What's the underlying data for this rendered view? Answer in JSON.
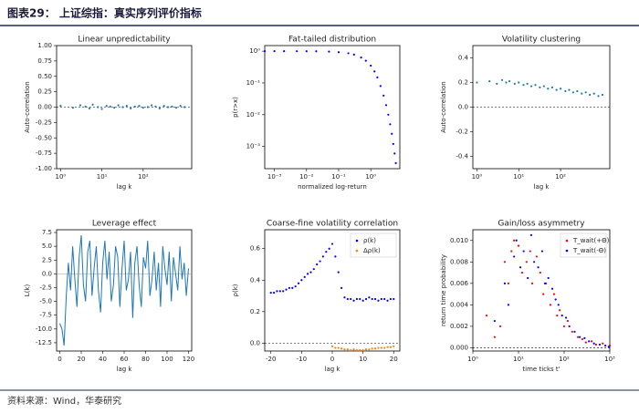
{
  "header": {
    "title": "图表29： 上证综指：真实序列评价指标"
  },
  "source": "资料来源：Wind，华泰研究",
  "chart_data": [
    {
      "type": "scatter",
      "title": "Linear unpredictability",
      "xlabel": "lag k",
      "ylabel": "Auto-correlation",
      "xlog": true,
      "xlim": [
        0.8,
        1500
      ],
      "xticks": [
        {
          "value": 1,
          "label": "10⁰"
        },
        {
          "value": 10,
          "label": "10¹"
        },
        {
          "value": 100,
          "label": "10²"
        }
      ],
      "ylim": [
        -1,
        1
      ],
      "yticks": [
        {
          "value": -1,
          "label": "-1.00"
        },
        {
          "value": -0.75,
          "label": "-0.75"
        },
        {
          "value": -0.5,
          "label": "-0.50"
        },
        {
          "value": -0.25,
          "label": "-0.25"
        },
        {
          "value": 0,
          "label": "0.00"
        },
        {
          "value": 0.25,
          "label": "0.25"
        },
        {
          "value": 0.5,
          "label": "0.50"
        },
        {
          "value": 0.75,
          "label": "0.75"
        },
        {
          "value": 1,
          "label": "1.00"
        }
      ],
      "series": [
        {
          "color": "#1f77b4",
          "x": [
            1,
            2,
            3,
            4,
            5,
            6,
            8,
            10,
            13,
            16,
            20,
            25,
            32,
            40,
            50,
            63,
            80,
            100,
            130,
            160,
            200,
            250,
            320,
            400,
            500,
            630,
            800,
            1000
          ],
          "values": [
            0.02,
            -0.01,
            0.03,
            0.01,
            -0.02,
            0.04,
            0.0,
            -0.03,
            0.02,
            0.01,
            -0.01,
            0.03,
            0.0,
            0.02,
            -0.02,
            0.01,
            0.02,
            -0.01,
            0.0,
            0.03,
            0.01,
            -0.02,
            0.02,
            0.0,
            0.01,
            -0.01,
            0.02,
            0.0
          ]
        }
      ]
    },
    {
      "type": "scatter",
      "title": "Fat-tailed distribution",
      "xlabel": "normalized log-return",
      "ylabel": "p(r>x)",
      "xlog": true,
      "ylog": true,
      "xlim": [
        0.0005,
        8
      ],
      "xticks": [
        {
          "value": 0.001,
          "label": "10⁻³"
        },
        {
          "value": 0.01,
          "label": "10⁻²"
        },
        {
          "value": 0.1,
          "label": "10⁻¹"
        },
        {
          "value": 1,
          "label": "10⁰"
        }
      ],
      "ylim": [
        0.0002,
        1.5
      ],
      "yticks": [
        {
          "value": 0.001,
          "label": "10⁻³"
        },
        {
          "value": 0.01,
          "label": "10⁻²"
        },
        {
          "value": 0.1,
          "label": "10⁻¹"
        },
        {
          "value": 1,
          "label": "10⁰"
        }
      ],
      "series": [
        {
          "color": "#0000ff",
          "x": [
            0.0005,
            0.001,
            0.002,
            0.005,
            0.01,
            0.02,
            0.05,
            0.1,
            0.2,
            0.3,
            0.5,
            0.7,
            1,
            1.3,
            1.6,
            2,
            2.5,
            3,
            3.5,
            4,
            4.5,
            5,
            5.5,
            6
          ],
          "values": [
            1,
            1,
            1,
            0.998,
            0.995,
            0.99,
            0.97,
            0.93,
            0.86,
            0.78,
            0.63,
            0.5,
            0.35,
            0.23,
            0.15,
            0.08,
            0.04,
            0.02,
            0.01,
            0.005,
            0.0025,
            0.0012,
            0.0006,
            0.0003
          ]
        }
      ]
    },
    {
      "type": "scatter",
      "title": "Volatility clustering",
      "xlabel": "lag k",
      "ylabel": "Auto-correlation",
      "xlog": true,
      "xlim": [
        0.8,
        1500
      ],
      "xticks": [
        {
          "value": 1,
          "label": "10⁰"
        },
        {
          "value": 10,
          "label": "10¹"
        },
        {
          "value": 100,
          "label": "10²"
        }
      ],
      "ylim": [
        -0.5,
        0.5
      ],
      "yticks": [
        -0.4,
        -0.2,
        {
          "value": 0,
          "label": "0.0"
        },
        0.2,
        0.4
      ],
      "series": [
        {
          "color": "#1f77b4",
          "x": [
            1,
            2,
            3,
            4,
            5,
            6,
            8,
            10,
            13,
            16,
            20,
            25,
            32,
            40,
            50,
            63,
            80,
            100,
            130,
            160,
            200,
            250,
            320,
            400,
            500,
            630,
            800,
            1000
          ],
          "values": [
            0.2,
            0.21,
            0.19,
            0.22,
            0.2,
            0.21,
            0.19,
            0.2,
            0.18,
            0.19,
            0.17,
            0.18,
            0.16,
            0.17,
            0.15,
            0.16,
            0.14,
            0.15,
            0.13,
            0.14,
            0.12,
            0.13,
            0.11,
            0.12,
            0.1,
            0.11,
            0.09,
            0.1
          ]
        }
      ]
    },
    {
      "type": "line",
      "title": "Leverage effect",
      "xlabel": "lag k",
      "ylabel": "L(k)",
      "xlim": [
        -3,
        123
      ],
      "xticks": [
        0,
        20,
        40,
        60,
        80,
        100,
        120
      ],
      "ylim": [
        -14,
        8
      ],
      "yticks": [
        {
          "value": -12.5,
          "label": "-12.5"
        },
        {
          "value": -10,
          "label": "-10.0"
        },
        {
          "value": -7.5,
          "label": "-7.5"
        },
        {
          "value": -5,
          "label": "-5.0"
        },
        {
          "value": -2.5,
          "label": "-2.5"
        },
        {
          "value": 0,
          "label": "0.0"
        },
        {
          "value": 2.5,
          "label": "2.5"
        },
        {
          "value": 5,
          "label": "5.0"
        },
        {
          "value": 7.5,
          "label": "7.5"
        }
      ],
      "series": [
        {
          "color": "#1f77b4",
          "x": [
            0,
            2,
            4,
            6,
            8,
            10,
            12,
            14,
            16,
            18,
            20,
            22,
            24,
            26,
            28,
            30,
            32,
            34,
            36,
            38,
            40,
            42,
            44,
            46,
            48,
            50,
            52,
            54,
            56,
            58,
            60,
            62,
            64,
            66,
            68,
            70,
            72,
            74,
            76,
            78,
            80,
            82,
            84,
            86,
            88,
            90,
            92,
            94,
            96,
            98,
            100,
            102,
            104,
            106,
            108,
            110,
            112,
            114,
            116,
            118,
            120
          ],
          "values": [
            -9,
            -10,
            -13,
            -4,
            2,
            -3,
            5,
            -1,
            -6,
            3,
            7,
            -2,
            -5,
            4,
            6,
            -4,
            1,
            5,
            -3,
            -7,
            2,
            6,
            -1,
            4,
            -5,
            -2,
            5,
            3,
            -6,
            1,
            6,
            -3,
            -1,
            4,
            -8,
            2,
            5,
            -2,
            -6,
            3,
            1,
            6,
            -4,
            -1,
            4,
            -3,
            2,
            -6,
            5,
            1,
            -2,
            4,
            -5,
            3,
            0,
            -3,
            5,
            -1,
            2,
            -4,
            1
          ]
        }
      ]
    },
    {
      "type": "scatter",
      "title": "Coarse-fine volatility correlation",
      "xlabel": "lag k",
      "ylabel": "ρ(k)",
      "legend": "upper right",
      "xlim": [
        -22,
        22
      ],
      "xticks": [
        -20,
        -10,
        0,
        10,
        20
      ],
      "ylim": [
        -0.05,
        0.72
      ],
      "yticks": [
        {
          "value": 0,
          "label": "0.0"
        },
        0.2,
        0.4,
        0.6
      ],
      "series": [
        {
          "name": "ρ(k)",
          "color": "#0000ff",
          "x": [
            -20,
            -19,
            -18,
            -17,
            -16,
            -15,
            -14,
            -13,
            -12,
            -11,
            -10,
            -9,
            -8,
            -7,
            -6,
            -5,
            -4,
            -3,
            -2,
            -1,
            0,
            1,
            2,
            3,
            4,
            5,
            6,
            7,
            8,
            9,
            10,
            11,
            12,
            13,
            14,
            15,
            16,
            17,
            18,
            19,
            20
          ],
          "values": [
            0.32,
            0.32,
            0.33,
            0.33,
            0.33,
            0.34,
            0.35,
            0.35,
            0.36,
            0.38,
            0.4,
            0.42,
            0.44,
            0.45,
            0.47,
            0.5,
            0.52,
            0.55,
            0.58,
            0.6,
            0.63,
            0.55,
            0.45,
            0.35,
            0.29,
            0.28,
            0.28,
            0.27,
            0.28,
            0.28,
            0.27,
            0.28,
            0.29,
            0.28,
            0.28,
            0.27,
            0.28,
            0.28,
            0.27,
            0.28,
            0.28
          ]
        },
        {
          "name": "Δρ(k)",
          "color": "#ff7f0e",
          "x": [
            0,
            1,
            2,
            3,
            4,
            5,
            6,
            7,
            8,
            9,
            10,
            11,
            12,
            13,
            14,
            15,
            16,
            17,
            18,
            19,
            20
          ],
          "values": [
            -0.02,
            -0.03,
            -0.03,
            -0.035,
            -0.04,
            -0.04,
            -0.045,
            -0.04,
            -0.045,
            -0.045,
            -0.045,
            -0.04,
            -0.04,
            -0.035,
            -0.035,
            -0.03,
            -0.03,
            -0.03,
            -0.025,
            -0.025,
            -0.02
          ]
        }
      ]
    },
    {
      "type": "scatter",
      "title": "Gain/loss asymmetry",
      "xlabel": "time ticks t'",
      "ylabel": "return time probability",
      "xlog": true,
      "legend": "upper right",
      "xlim": [
        1,
        1000
      ],
      "xticks": [
        {
          "value": 1,
          "label": "10⁰"
        },
        {
          "value": 10,
          "label": "10¹"
        },
        {
          "value": 100,
          "label": "10²"
        },
        {
          "value": 1000,
          "label": "10³"
        }
      ],
      "ylim": [
        -0.0003,
        0.011
      ],
      "yticks": [
        {
          "value": 0,
          "label": "0.000"
        },
        {
          "value": 0.002,
          "label": "0.002"
        },
        {
          "value": 0.004,
          "label": "0.004"
        },
        {
          "value": 0.006,
          "label": "0.006"
        },
        {
          "value": 0.008,
          "label": "0.008"
        },
        {
          "value": 0.01,
          "label": "0.010"
        }
      ],
      "series": [
        {
          "name": "T_wait(+Θ)",
          "color": "#ff0000",
          "x": [
            2,
            3,
            4,
            5,
            6,
            7,
            8,
            10,
            12,
            15,
            18,
            20,
            25,
            30,
            35,
            40,
            50,
            60,
            70,
            80,
            100,
            120,
            150,
            200,
            250,
            300,
            400,
            500,
            700,
            1000
          ],
          "values": [
            0.003,
            0.001,
            0.002,
            0.008,
            0.006,
            0.009,
            0.01,
            0.0095,
            0.007,
            0.008,
            0.009,
            0.006,
            0.0085,
            0.007,
            0.005,
            0.006,
            0.004,
            0.005,
            0.003,
            0.0035,
            0.002,
            0.0025,
            0.0015,
            0.001,
            0.0008,
            0.0005,
            0.0006,
            0.0003,
            0.0004,
            0.0002
          ]
        },
        {
          "name": "T_wait(-Θ)",
          "color": "#0000ff",
          "x": [
            3,
            5,
            6,
            8,
            9,
            11,
            13,
            16,
            19,
            22,
            27,
            33,
            38,
            45,
            55,
            65,
            75,
            90,
            110,
            130,
            170,
            220,
            280,
            350,
            450,
            600,
            800,
            950
          ],
          "values": [
            0.0025,
            0.006,
            0.004,
            0.0085,
            0.01,
            0.0075,
            0.009,
            0.0065,
            0.0105,
            0.008,
            0.0075,
            0.009,
            0.006,
            0.0065,
            0.0055,
            0.0045,
            0.004,
            0.003,
            0.0028,
            0.002,
            0.0015,
            0.001,
            0.0009,
            0.0006,
            0.0004,
            0.0003,
            0.0002,
            0.0001
          ]
        }
      ]
    }
  ]
}
